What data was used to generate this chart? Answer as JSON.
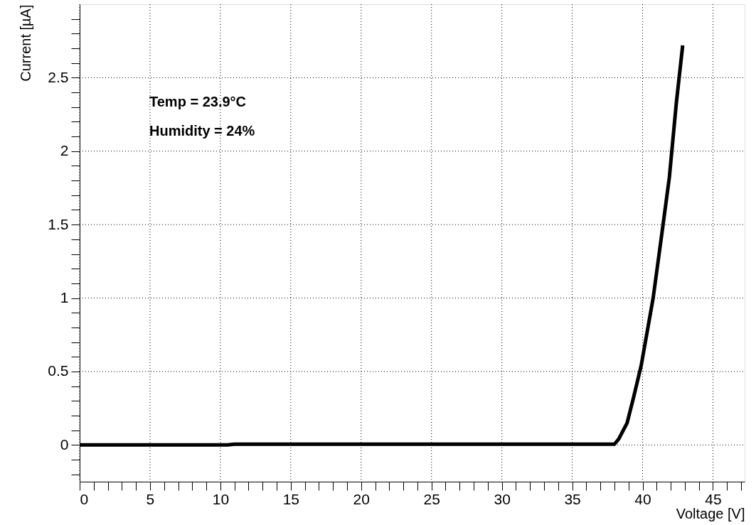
{
  "chart_data": {
    "type": "line",
    "xlabel": "Voltage [V]",
    "ylabel": "Current [µA]",
    "annotations": [
      "Temp = 23.9°C",
      "Humidity = 24%"
    ],
    "x": [
      0,
      10.5,
      11,
      38,
      38.3,
      38.9,
      39.35,
      39.9,
      40.75,
      41.4,
      41.9,
      42.4,
      42.85
    ],
    "series": [
      {
        "color": "#000000",
        "values": [
          0,
          0,
          0.005,
          0.005,
          0.04,
          0.15,
          0.32,
          0.54,
          1.0,
          1.46,
          1.82,
          2.33,
          2.72
        ]
      }
    ],
    "xlim": [
      0,
      47.25
    ],
    "ylim": [
      -0.25,
      3.0
    ],
    "xticks": [
      0,
      {
        "value": 1,
        "label": null
      },
      {
        "value": 2,
        "label": null
      },
      {
        "value": 3,
        "label": null
      },
      {
        "value": 4,
        "label": null
      },
      5,
      {
        "value": 6,
        "label": null
      },
      {
        "value": 7,
        "label": null
      },
      {
        "value": 8,
        "label": null
      },
      {
        "value": 9,
        "label": null
      },
      10,
      {
        "value": 11,
        "label": null
      },
      {
        "value": 12,
        "label": null
      },
      {
        "value": 13,
        "label": null
      },
      {
        "value": 14,
        "label": null
      },
      15,
      {
        "value": 16,
        "label": null
      },
      {
        "value": 17,
        "label": null
      },
      {
        "value": 18,
        "label": null
      },
      {
        "value": 19,
        "label": null
      },
      20,
      {
        "value": 21,
        "label": null
      },
      {
        "value": 22,
        "label": null
      },
      {
        "value": 23,
        "label": null
      },
      {
        "value": 24,
        "label": null
      },
      25,
      {
        "value": 26,
        "label": null
      },
      {
        "value": 27,
        "label": null
      },
      {
        "value": 28,
        "label": null
      },
      {
        "value": 29,
        "label": null
      },
      30,
      {
        "value": 31,
        "label": null
      },
      {
        "value": 32,
        "label": null
      },
      {
        "value": 33,
        "label": null
      },
      {
        "value": 34,
        "label": null
      },
      35,
      {
        "value": 36,
        "label": null
      },
      {
        "value": 37,
        "label": null
      },
      {
        "value": 38,
        "label": null
      },
      {
        "value": 39,
        "label": null
      },
      40,
      {
        "value": 41,
        "label": null
      },
      {
        "value": 42,
        "label": null
      },
      {
        "value": 43,
        "label": null
      },
      {
        "value": 44,
        "label": null
      },
      45,
      {
        "value": 46,
        "label": null
      },
      {
        "value": 47,
        "label": null
      }
    ],
    "yticks": [
      {
        "value": -0.2,
        "label": null
      },
      {
        "value": -0.1,
        "label": null
      },
      0,
      {
        "value": 0.1,
        "label": null
      },
      {
        "value": 0.2,
        "label": null
      },
      {
        "value": 0.3,
        "label": null
      },
      {
        "value": 0.4,
        "label": null
      },
      0.5,
      {
        "value": 0.6,
        "label": null
      },
      {
        "value": 0.7,
        "label": null
      },
      {
        "value": 0.8,
        "label": null
      },
      {
        "value": 0.9,
        "label": null
      },
      1,
      {
        "value": 1.1,
        "label": null
      },
      {
        "value": 1.2,
        "label": null
      },
      {
        "value": 1.3,
        "label": null
      },
      {
        "value": 1.4,
        "label": null
      },
      1.5,
      {
        "value": 1.6,
        "label": null
      },
      {
        "value": 1.7,
        "label": null
      },
      {
        "value": 1.8,
        "label": null
      },
      {
        "value": 1.9,
        "label": null
      },
      2,
      {
        "value": 2.1,
        "label": null
      },
      {
        "value": 2.2,
        "label": null
      },
      {
        "value": 2.3,
        "label": null
      },
      {
        "value": 2.4,
        "label": null
      },
      2.5,
      {
        "value": 2.6,
        "label": null
      },
      {
        "value": 2.7,
        "label": null
      },
      {
        "value": 2.8,
        "label": null
      },
      {
        "value": 2.9,
        "label": null
      }
    ],
    "grid": true,
    "marker": "none",
    "line_style": "solid"
  }
}
